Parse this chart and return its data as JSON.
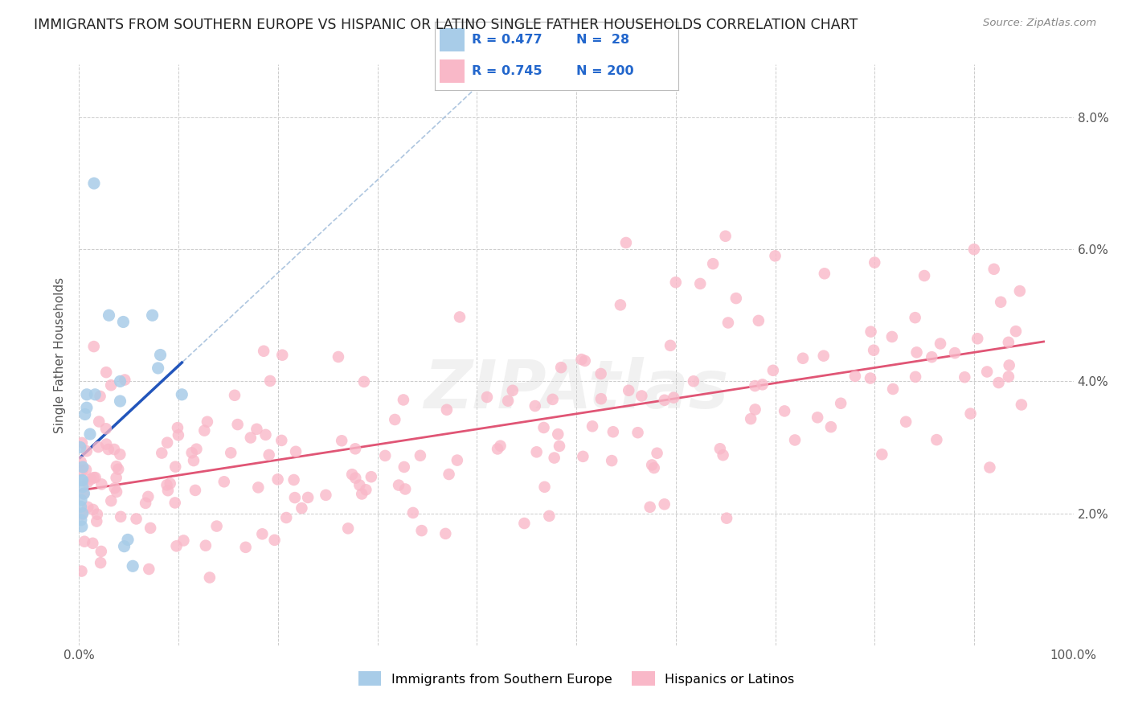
{
  "title": "IMMIGRANTS FROM SOUTHERN EUROPE VS HISPANIC OR LATINO SINGLE FATHER HOUSEHOLDS CORRELATION CHART",
  "source": "Source: ZipAtlas.com",
  "ylabel": "Single Father Households",
  "xlim": [
    0.0,
    1.0
  ],
  "ylim": [
    0.0,
    0.088
  ],
  "blue_R": 0.477,
  "blue_N": 28,
  "pink_R": 0.745,
  "pink_N": 200,
  "blue_color": "#a8cce8",
  "pink_color": "#f9b8c8",
  "blue_line_color": "#2255bb",
  "pink_line_color": "#e05575",
  "blue_dash_color": "#9ab8d8",
  "background_color": "#ffffff",
  "grid_color": "#cccccc",
  "legend_label_blue": "Immigrants from Southern Europe",
  "legend_label_pink": "Hispanics or Latinos",
  "title_fontsize": 12.5,
  "watermark_text": "ZIPAtlas",
  "watermark_fontsize": 60,
  "right_ytick_color": "#3399cc"
}
